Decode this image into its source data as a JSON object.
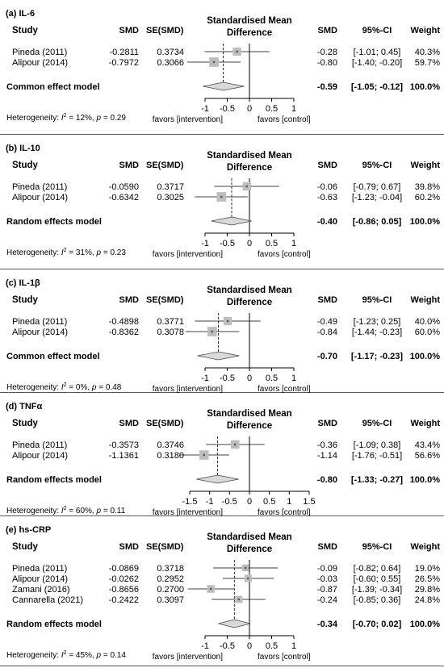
{
  "headers": {
    "study": "Study",
    "smd": "SMD",
    "se": "SE(SMD)",
    "plot_title_1": "Standardised Mean",
    "plot_title_2": "Difference",
    "smd_right": "SMD",
    "ci": "95%-CI",
    "weight": "Weight",
    "favors_left": "favors [intervention]",
    "favors_right": "favors [control]"
  },
  "chart_data": [
    {
      "type": "forest",
      "panel_label": "(a) IL-6",
      "xlim": [
        -1,
        1
      ],
      "ticks": [
        "-1",
        "-0.5",
        "0",
        "0.5",
        "1"
      ],
      "tick_values": [
        -1,
        -0.5,
        0,
        0.5,
        1
      ],
      "studies": [
        {
          "name": "Pineda (2011)",
          "smd": -0.2811,
          "smd_text": "-0.2811",
          "se_text": "0.3734",
          "est": -0.28,
          "lo": -1.01,
          "hi": 0.45,
          "est_text": "-0.28",
          "ci_text": "[-1.01; 0.45]",
          "weight": 40.3,
          "weight_text": "40.3%"
        },
        {
          "name": "Alipour (2014)",
          "smd": -0.7972,
          "smd_text": "-0.7972",
          "se_text": "0.3066",
          "est": -0.8,
          "lo": -1.4,
          "hi": -0.2,
          "est_text": "-0.80",
          "ci_text": "[-1.40; -0.20]",
          "weight": 59.7,
          "weight_text": "59.7%"
        }
      ],
      "pooled": {
        "label": "Common effect model",
        "est": -0.59,
        "lo": -1.05,
        "hi": -0.12,
        "est_text": "-0.59",
        "ci_text": "[-1.05; -0.12]",
        "weight_text": "100.0%"
      },
      "heterogeneity": {
        "prefix": "Heterogeneity: ",
        "i2_label": "I",
        "i2_sup": "2",
        "i2_value": " = 12%, ",
        "p_label": "p",
        "p_value": " = 0.29"
      }
    },
    {
      "type": "forest",
      "panel_label": "(b) IL-10",
      "xlim": [
        -1,
        1
      ],
      "ticks": [
        "-1",
        "-0.5",
        "0",
        "0.5",
        "1"
      ],
      "tick_values": [
        -1,
        -0.5,
        0,
        0.5,
        1
      ],
      "studies": [
        {
          "name": "Pineda (2011)",
          "smd": -0.059,
          "smd_text": "-0.0590",
          "se_text": "0.3717",
          "est": -0.06,
          "lo": -0.79,
          "hi": 0.67,
          "est_text": "-0.06",
          "ci_text": "[-0.79; 0.67]",
          "weight": 39.8,
          "weight_text": "39.8%"
        },
        {
          "name": "Alipour (2014)",
          "smd": -0.6342,
          "smd_text": "-0.6342",
          "se_text": "0.3025",
          "est": -0.63,
          "lo": -1.23,
          "hi": -0.04,
          "est_text": "-0.63",
          "ci_text": "[-1.23; -0.04]",
          "weight": 60.2,
          "weight_text": "60.2%"
        }
      ],
      "pooled": {
        "label": "Random effects model",
        "est": -0.4,
        "lo": -0.86,
        "hi": 0.05,
        "est_text": "-0.40",
        "ci_text": "[-0.86; 0.05]",
        "weight_text": "100.0%"
      },
      "heterogeneity": {
        "prefix": "Heterogeneity: ",
        "i2_label": "I",
        "i2_sup": "2",
        "i2_value": " = 31%, ",
        "p_label": "p",
        "p_value": " = 0.23"
      }
    },
    {
      "type": "forest",
      "panel_label": "(c) IL-1β",
      "xlim": [
        -1,
        1
      ],
      "ticks": [
        "-1",
        "-0.5",
        "0",
        "0.5",
        "1"
      ],
      "tick_values": [
        -1,
        -0.5,
        0,
        0.5,
        1
      ],
      "studies": [
        {
          "name": "Pineda (2011)",
          "smd": -0.4898,
          "smd_text": "-0.4898",
          "se_text": "0.3771",
          "est": -0.49,
          "lo": -1.23,
          "hi": 0.25,
          "est_text": "-0.49",
          "ci_text": "[-1.23; 0.25]",
          "weight": 40.0,
          "weight_text": "40.0%"
        },
        {
          "name": "Alipour (2014)",
          "smd": -0.8362,
          "smd_text": "-0.8362",
          "se_text": "0.3078",
          "est": -0.84,
          "lo": -1.44,
          "hi": -0.23,
          "est_text": "-0.84",
          "ci_text": "[-1.44; -0.23]",
          "weight": 60.0,
          "weight_text": "60.0%"
        }
      ],
      "pooled": {
        "label": "Common effect model",
        "est": -0.7,
        "lo": -1.17,
        "hi": -0.23,
        "est_text": "-0.70",
        "ci_text": "[-1.17; -0.23]",
        "weight_text": "100.0%"
      },
      "heterogeneity": {
        "prefix": "Heterogeneity: ",
        "i2_label": "I",
        "i2_sup": "2",
        "i2_value": " = 0%, ",
        "p_label": "p",
        "p_value": " = 0.48"
      }
    },
    {
      "type": "forest",
      "panel_label": "(d) TNFα",
      "xlim": [
        -1.5,
        1.5
      ],
      "ticks": [
        "-1.5",
        "-1",
        "-0.5",
        "0",
        "0.5",
        "1",
        "1.5"
      ],
      "tick_values": [
        -1.5,
        -1,
        -0.5,
        0,
        0.5,
        1,
        1.5
      ],
      "studies": [
        {
          "name": "Pineda (2011)",
          "smd": -0.3573,
          "smd_text": "-0.3573",
          "se_text": "0.3746",
          "est": -0.36,
          "lo": -1.09,
          "hi": 0.38,
          "est_text": "-0.36",
          "ci_text": "[-1.09; 0.38]",
          "weight": 43.4,
          "weight_text": "43.4%"
        },
        {
          "name": "Alipour (2014)",
          "smd": -1.1361,
          "smd_text": "-1.1361",
          "se_text": "0.3180",
          "est": -1.14,
          "lo": -1.76,
          "hi": -0.51,
          "est_text": "-1.14",
          "ci_text": "[-1.76; -0.51]",
          "weight": 56.6,
          "weight_text": "56.6%"
        }
      ],
      "pooled": {
        "label": "Random effects model",
        "est": -0.8,
        "lo": -1.33,
        "hi": -0.27,
        "est_text": "-0.80",
        "ci_text": "[-1.33; -0.27]",
        "weight_text": "100.0%"
      },
      "heterogeneity": {
        "prefix": "Heterogeneity: ",
        "i2_label": "I",
        "i2_sup": "2",
        "i2_value": " = 60%, ",
        "p_label": "p",
        "p_value": " = 0.11"
      }
    },
    {
      "type": "forest",
      "panel_label": "(e) hs-CRP",
      "xlim": [
        -1,
        1
      ],
      "ticks": [
        "-1",
        "-0.5",
        "0",
        "0.5",
        "1"
      ],
      "tick_values": [
        -1,
        -0.5,
        0,
        0.5,
        1
      ],
      "studies": [
        {
          "name": "Pineda (2011)",
          "smd": -0.0869,
          "smd_text": "-0.0869",
          "se_text": "0.3718",
          "est": -0.09,
          "lo": -0.82,
          "hi": 0.64,
          "est_text": "-0.09",
          "ci_text": "[-0.82; 0.64]",
          "weight": 19.0,
          "weight_text": "19.0%"
        },
        {
          "name": "Alipour (2014)",
          "smd": -0.0262,
          "smd_text": "-0.0262",
          "se_text": "0.2952",
          "est": -0.03,
          "lo": -0.6,
          "hi": 0.55,
          "est_text": "-0.03",
          "ci_text": "[-0.60; 0.55]",
          "weight": 26.5,
          "weight_text": "26.5%"
        },
        {
          "name": "Zamani (2016)",
          "smd": -0.8656,
          "smd_text": "-0.8656",
          "se_text": "0.2700",
          "est": -0.87,
          "lo": -1.39,
          "hi": -0.34,
          "est_text": "-0.87",
          "ci_text": "[-1.39; -0.34]",
          "weight": 29.8,
          "weight_text": "29.8%"
        },
        {
          "name": "Cannarella (2021)",
          "smd": -0.2422,
          "smd_text": "-0.2422",
          "se_text": "0.3097",
          "est": -0.24,
          "lo": -0.85,
          "hi": 0.36,
          "est_text": "-0.24",
          "ci_text": "[-0.85; 0.36]",
          "weight": 24.8,
          "weight_text": "24.8%"
        }
      ],
      "pooled": {
        "label": "Random effects model",
        "est": -0.34,
        "lo": -0.7,
        "hi": 0.02,
        "est_text": "-0.34",
        "ci_text": "[-0.70; 0.02]",
        "weight_text": "100.0%"
      },
      "heterogeneity": {
        "prefix": "Heterogeneity: ",
        "i2_label": "I",
        "i2_sup": "2",
        "i2_value": " = 45%, ",
        "p_label": "p",
        "p_value": " = 0.14"
      }
    }
  ]
}
